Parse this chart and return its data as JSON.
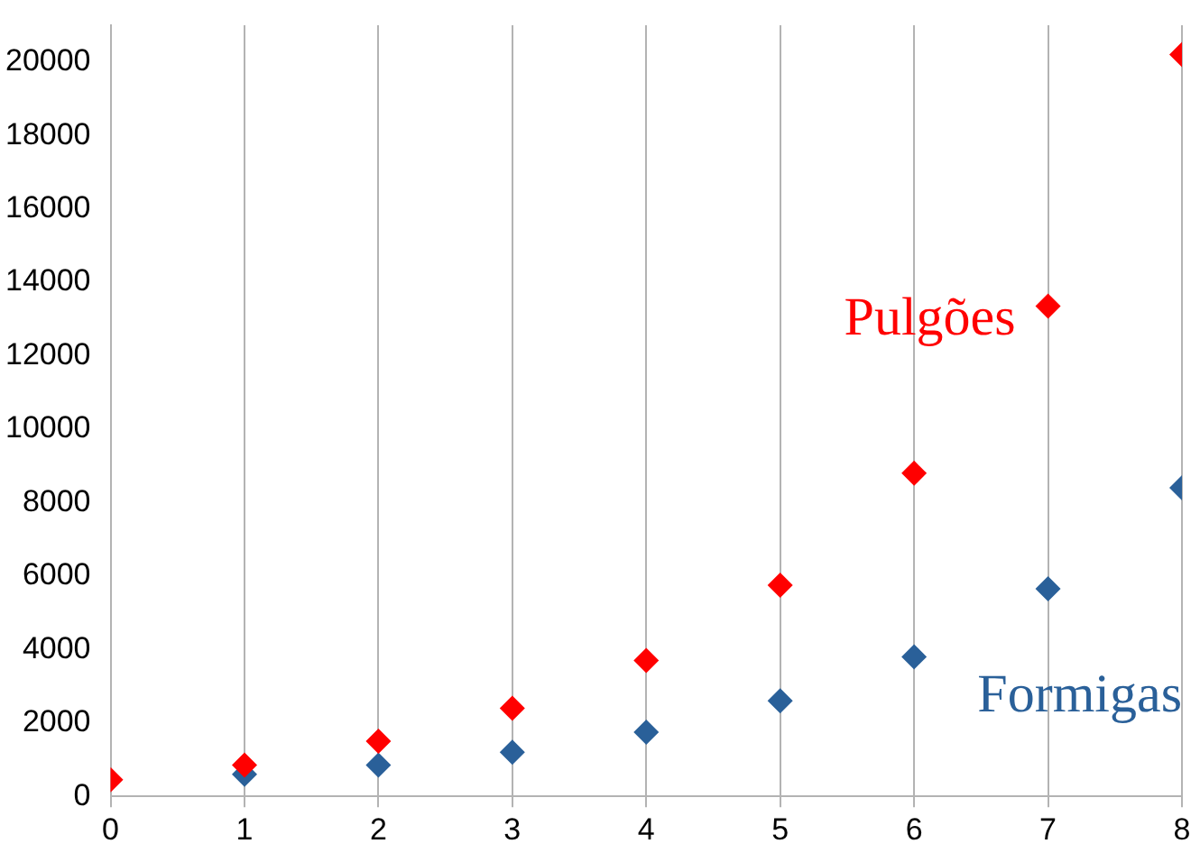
{
  "chart_data": {
    "type": "scatter",
    "x": [
      0,
      1,
      2,
      3,
      4,
      5,
      6,
      7,
      8
    ],
    "series": [
      {
        "name": "Pulgões",
        "color": "#ff0000",
        "values": [
          450,
          850,
          1500,
          2400,
          3700,
          5750,
          8800,
          13350,
          20200
        ]
      },
      {
        "name": "Formigas",
        "color": "#2a6099",
        "values": [
          null,
          600,
          850,
          1200,
          1750,
          2600,
          3800,
          5650,
          8400
        ]
      }
    ],
    "xlim": [
      0,
      8
    ],
    "xticks": [
      0,
      1,
      2,
      3,
      4,
      5,
      6,
      7,
      8
    ],
    "ylim": [
      0,
      21000
    ],
    "yticks": [
      0,
      2000,
      4000,
      6000,
      8000,
      10000,
      12000,
      14000,
      16000,
      18000,
      20000
    ],
    "grid": "x",
    "marker": "diamond",
    "legend": false
  }
}
